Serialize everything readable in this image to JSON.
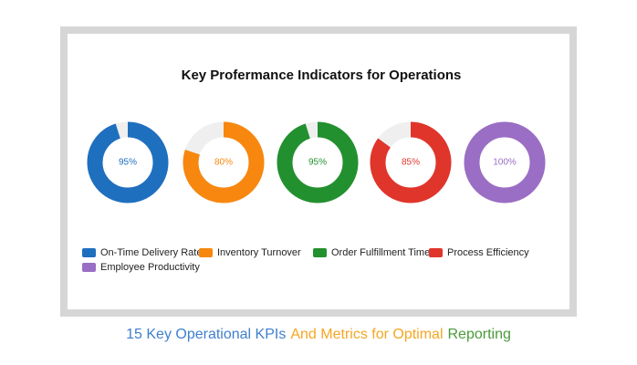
{
  "chart_data": {
    "type": "donut",
    "title": "Key Profermance Indicators for Operations",
    "ylim": [
      0,
      100
    ],
    "track_color": "#efefef",
    "legend": "bottom-left",
    "series": [
      {
        "name": "On-Time Delivery Rate",
        "color": "#1f6fbf",
        "values": [
          95
        ],
        "value_labels": [
          "95%"
        ]
      },
      {
        "name": "Inventory Turnover",
        "color": "#f7870f",
        "values": [
          80
        ],
        "value_labels": [
          "80%"
        ]
      },
      {
        "name": "Order Fulfillment Time",
        "color": "#23902f",
        "values": [
          95
        ],
        "value_labels": [
          "95%"
        ]
      },
      {
        "name": "Process Efficiency",
        "color": "#e0352b",
        "values": [
          85
        ],
        "value_labels": [
          "85%"
        ]
      },
      {
        "name": "Employee Productivity",
        "color": "#9a6ec4",
        "values": [
          100
        ],
        "value_labels": [
          "100%"
        ]
      }
    ]
  },
  "caption": {
    "parts": [
      {
        "text": "15 Key Operational KPIs",
        "color": "#3f7fcf"
      },
      {
        "text": "And Metrics for Optimal",
        "color": "#f5a623"
      },
      {
        "text": "Reporting",
        "color": "#4a9a3a"
      }
    ]
  }
}
